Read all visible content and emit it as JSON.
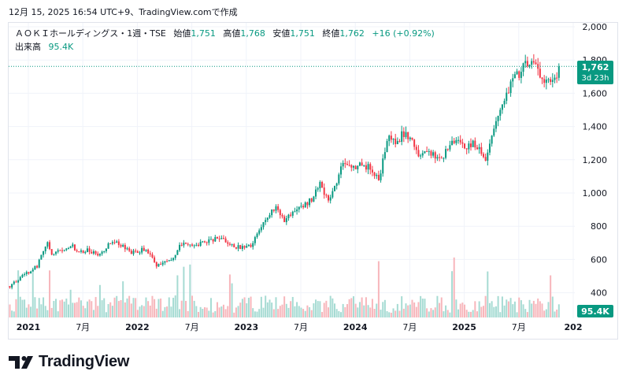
{
  "header": {
    "timestamp_line": "12月 15, 2025 16:54 UTC+9、TradingView.comで作成"
  },
  "legend": {
    "symbol": "ＡＯＫＩホールディングス・1週・TSE",
    "open_label": "始値",
    "open_value": "1,751",
    "high_label": "高値",
    "high_value": "1,768",
    "low_label": "安値",
    "low_value": "1,751",
    "close_label": "終値",
    "close_value": "1,762",
    "change": "+16 (+0.92%)",
    "volume_label": "出来高",
    "volume_value": "95.4K"
  },
  "price_tag": {
    "value": "1,762",
    "countdown": "3d 23h"
  },
  "volume_tag": {
    "value": "95.4K"
  },
  "brand": {
    "name": "TradingView"
  },
  "colors": {
    "up": "#089981",
    "down": "#f23645",
    "up_vol": "#a6dbd3",
    "down_vol": "#f7b6bb",
    "grid": "#f0f3fa"
  },
  "chart_data": {
    "type": "candlestick",
    "interval": "1 week",
    "ylim": [
      320,
      2000
    ],
    "y_ticks": [
      {
        "value": 400,
        "label": "400"
      },
      {
        "value": 600,
        "label": "600"
      },
      {
        "value": 800,
        "label": "800"
      },
      {
        "value": 1000,
        "label": "1,000"
      },
      {
        "value": 1200,
        "label": "1,200"
      },
      {
        "value": 1400,
        "label": "1,400"
      },
      {
        "value": 1600,
        "label": "1,600"
      },
      {
        "value": 1800,
        "label": "1,800"
      },
      {
        "value": 2000,
        "label": "2,000"
      }
    ],
    "x_ticks": [
      {
        "label": "2021",
        "t": 0.0,
        "year": true
      },
      {
        "label": "7月",
        "t": 0.5
      },
      {
        "label": "2022",
        "t": 1.0,
        "year": true
      },
      {
        "label": "7月",
        "t": 1.5
      },
      {
        "label": "2023",
        "t": 2.0,
        "year": true
      },
      {
        "label": "7月",
        "t": 2.5
      },
      {
        "label": "2024",
        "t": 3.0,
        "year": true
      },
      {
        "label": "7月",
        "t": 3.5
      },
      {
        "label": "2025",
        "t": 4.0,
        "year": true
      },
      {
        "label": "7月",
        "t": 4.5
      },
      {
        "label": "202",
        "t": 5.0,
        "year": true
      }
    ],
    "start_t": -0.17,
    "last_close": 1762,
    "anchors": [
      {
        "t": -0.17,
        "p": 440
      },
      {
        "t": -0.05,
        "p": 500
      },
      {
        "t": 0.08,
        "p": 560
      },
      {
        "t": 0.12,
        "p": 640
      },
      {
        "t": 0.18,
        "p": 700
      },
      {
        "t": 0.22,
        "p": 620
      },
      {
        "t": 0.3,
        "p": 660
      },
      {
        "t": 0.4,
        "p": 690
      },
      {
        "t": 0.45,
        "p": 640
      },
      {
        "t": 0.55,
        "p": 660
      },
      {
        "t": 0.65,
        "p": 620
      },
      {
        "t": 0.75,
        "p": 710
      },
      {
        "t": 0.85,
        "p": 690
      },
      {
        "t": 0.95,
        "p": 640
      },
      {
        "t": 1.05,
        "p": 660
      },
      {
        "t": 1.12,
        "p": 630
      },
      {
        "t": 1.18,
        "p": 560
      },
      {
        "t": 1.25,
        "p": 580
      },
      {
        "t": 1.32,
        "p": 610
      },
      {
        "t": 1.4,
        "p": 690
      },
      {
        "t": 1.5,
        "p": 680
      },
      {
        "t": 1.6,
        "p": 700
      },
      {
        "t": 1.75,
        "p": 730
      },
      {
        "t": 1.85,
        "p": 690
      },
      {
        "t": 1.95,
        "p": 670
      },
      {
        "t": 2.05,
        "p": 680
      },
      {
        "t": 2.12,
        "p": 780
      },
      {
        "t": 2.2,
        "p": 860
      },
      {
        "t": 2.28,
        "p": 930
      },
      {
        "t": 2.34,
        "p": 830
      },
      {
        "t": 2.4,
        "p": 860
      },
      {
        "t": 2.5,
        "p": 920
      },
      {
        "t": 2.6,
        "p": 960
      },
      {
        "t": 2.68,
        "p": 1050
      },
      {
        "t": 2.75,
        "p": 950
      },
      {
        "t": 2.82,
        "p": 1050
      },
      {
        "t": 2.9,
        "p": 1200
      },
      {
        "t": 2.97,
        "p": 1150
      },
      {
        "t": 3.05,
        "p": 1180
      },
      {
        "t": 3.15,
        "p": 1140
      },
      {
        "t": 3.22,
        "p": 1090
      },
      {
        "t": 3.3,
        "p": 1340
      },
      {
        "t": 3.37,
        "p": 1310
      },
      {
        "t": 3.45,
        "p": 1360
      },
      {
        "t": 3.52,
        "p": 1330
      },
      {
        "t": 3.57,
        "p": 1240
      },
      {
        "t": 3.65,
        "p": 1260
      },
      {
        "t": 3.75,
        "p": 1200
      },
      {
        "t": 3.83,
        "p": 1240
      },
      {
        "t": 3.92,
        "p": 1320
      },
      {
        "t": 4.0,
        "p": 1270
      },
      {
        "t": 4.1,
        "p": 1300
      },
      {
        "t": 4.15,
        "p": 1250
      },
      {
        "t": 4.2,
        "p": 1180
      },
      {
        "t": 4.24,
        "p": 1300
      },
      {
        "t": 4.3,
        "p": 1460
      },
      {
        "t": 4.36,
        "p": 1560
      },
      {
        "t": 4.42,
        "p": 1650
      },
      {
        "t": 4.5,
        "p": 1720
      },
      {
        "t": 4.56,
        "p": 1760
      },
      {
        "t": 4.63,
        "p": 1830
      },
      {
        "t": 4.7,
        "p": 1700
      },
      {
        "t": 4.75,
        "p": 1650
      },
      {
        "t": 4.8,
        "p": 1680
      },
      {
        "t": 4.85,
        "p": 1720
      },
      {
        "t": 4.88,
        "p": 1762
      }
    ]
  }
}
